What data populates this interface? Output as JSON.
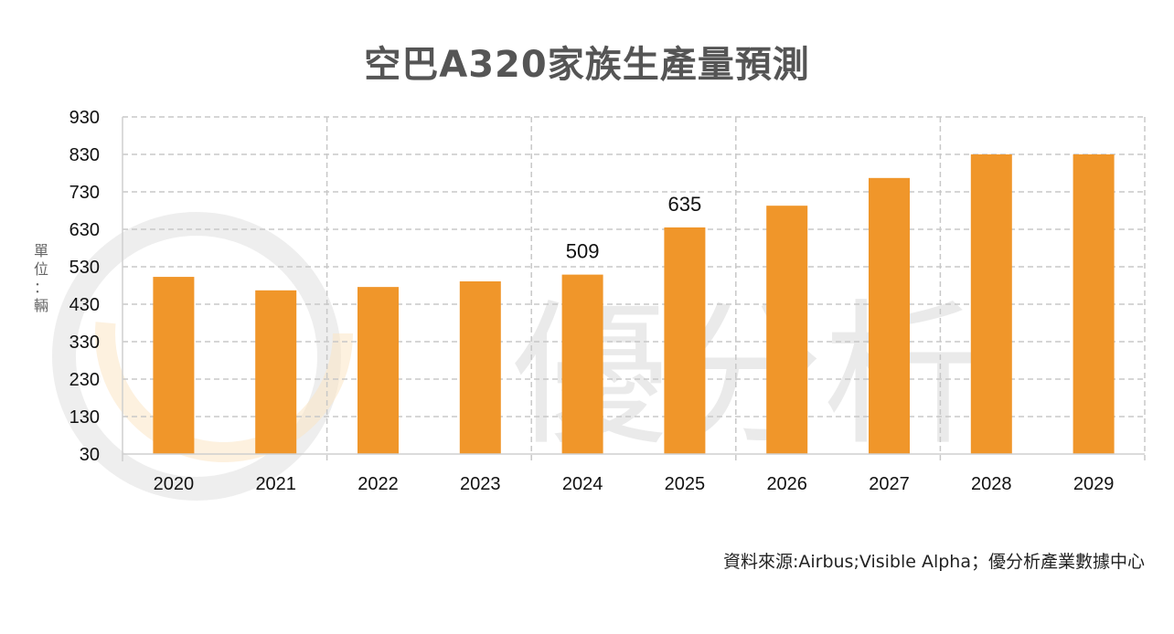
{
  "page": {
    "title": "空巴A320家族生產量預測",
    "source": "資料來源:Airbus;Visible Alpha；優分析產業數據中心",
    "watermark": "優分析"
  },
  "chart_data": {
    "type": "bar",
    "title": "空巴A320家族生產量預測",
    "xlabel": "",
    "ylabel": "單位：輛",
    "ylabel_chars": [
      "單",
      "位",
      "：",
      "輛"
    ],
    "categories": [
      "2020",
      "2021",
      "2022",
      "2023",
      "2024",
      "2025",
      "2026",
      "2027",
      "2028",
      "2029"
    ],
    "values": [
      503,
      467,
      476,
      491,
      509,
      635,
      693,
      767,
      830,
      830
    ],
    "data_labels": [
      null,
      null,
      null,
      null,
      "509",
      "635",
      null,
      null,
      null,
      null
    ],
    "ylim": [
      30,
      930
    ],
    "yticks": [
      30,
      130,
      230,
      330,
      430,
      530,
      630,
      730,
      830,
      930
    ],
    "grid": true,
    "legend": "none",
    "bar_color": "#F0962A",
    "grid_color": "#c8c8c8"
  }
}
